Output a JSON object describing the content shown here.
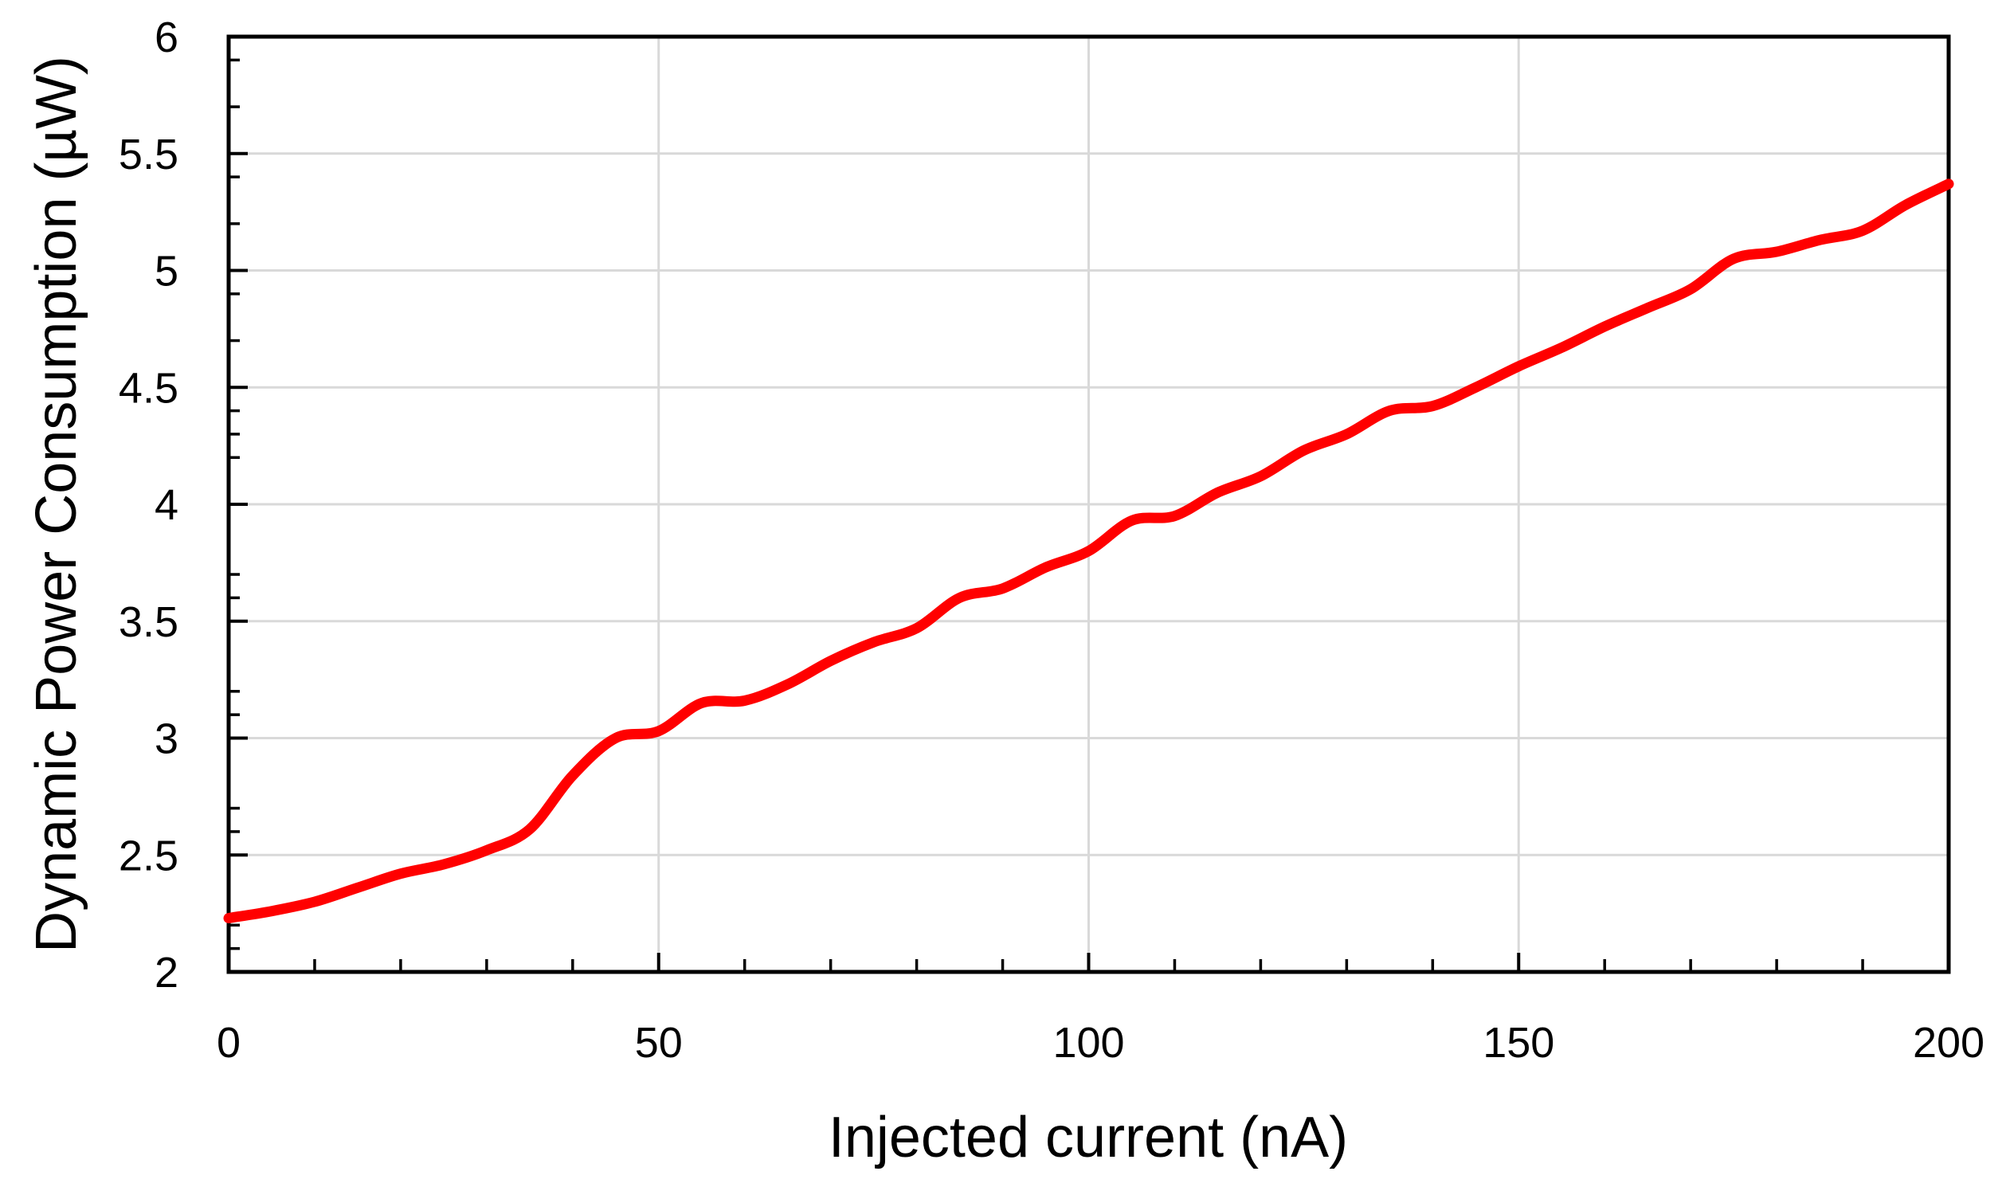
{
  "chart_data": {
    "type": "line",
    "title": "",
    "xlabel": "Injected current (nA)",
    "ylabel": "Dynamic Power Consumption (µW)",
    "x": [
      0,
      5,
      10,
      15,
      20,
      25,
      30,
      35,
      40,
      45,
      50,
      55,
      60,
      65,
      70,
      75,
      80,
      85,
      90,
      95,
      100,
      105,
      110,
      115,
      120,
      125,
      130,
      135,
      140,
      145,
      150,
      155,
      160,
      165,
      170,
      175,
      180,
      185,
      190,
      195,
      200
    ],
    "series": [
      {
        "color": "#FF0000",
        "values": [
          2.23,
          2.26,
          2.3,
          2.36,
          2.42,
          2.46,
          2.52,
          2.61,
          2.84,
          3.0,
          3.03,
          3.15,
          3.16,
          3.23,
          3.33,
          3.41,
          3.47,
          3.6,
          3.64,
          3.73,
          3.8,
          3.93,
          3.95,
          4.05,
          4.12,
          4.23,
          4.3,
          4.4,
          4.42,
          4.5,
          4.59,
          4.67,
          4.76,
          4.84,
          4.92,
          5.05,
          5.08,
          5.13,
          5.17,
          5.28,
          5.37
        ]
      }
    ],
    "xlim": [
      0,
      200
    ],
    "ylim": [
      2,
      6
    ],
    "x_tick_values": [
      0,
      50,
      100,
      150,
      200
    ],
    "x_tick_labels": [
      "0",
      "50",
      "100",
      "150",
      "200"
    ],
    "y_tick_values": [
      2,
      2.5,
      3,
      3.5,
      4,
      4.5,
      5,
      5.5,
      6
    ],
    "y_tick_labels": [
      "2",
      "2.5",
      "3",
      "3.5",
      "4",
      "4.5",
      "5",
      "5.5",
      "6"
    ],
    "x_minor_step": 10,
    "y_minor_step": 0.1,
    "x_gridlines": [
      50,
      100,
      150
    ],
    "y_gridlines": [
      2.5,
      3,
      3.5,
      4,
      4.5,
      5,
      5.5
    ],
    "grid_on": true,
    "legend": "none",
    "smoothed_line": true,
    "colors": {
      "line": "#FF0000",
      "gridline": "#D9D9D9",
      "axis": "#000000",
      "text": "#000000",
      "background": "#FFFFFF"
    }
  }
}
